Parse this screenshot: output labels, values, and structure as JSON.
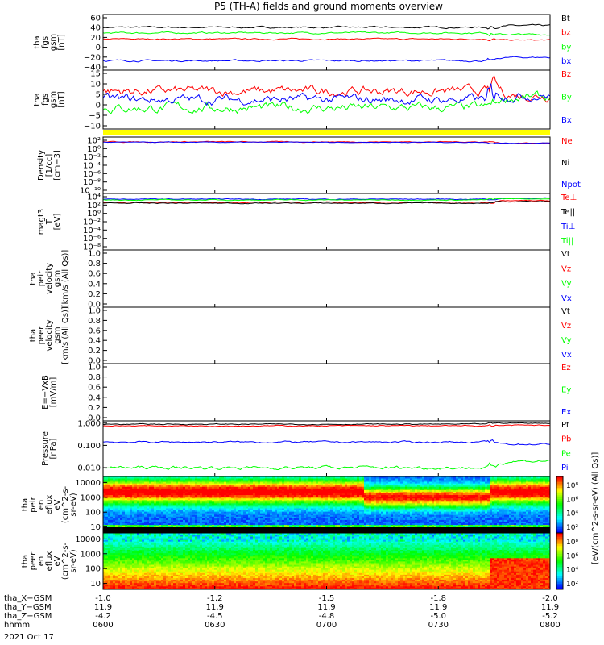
{
  "title": "P5 (TH-A) fields and ground moments overview",
  "date_label": "2021 Oct 17",
  "colors": {
    "black": "#000000",
    "red": "#ff0000",
    "green": "#00ff00",
    "blue": "#0000ff",
    "yellow": "#ffff00"
  },
  "chart_data": [
    {
      "id": "fgs_gsm",
      "type": "line",
      "ylabel_lines": [
        "tha",
        "fgs",
        "gsm",
        "[nT]"
      ],
      "ylim": [
        -40,
        60
      ],
      "yticks": [
        "60",
        "40",
        "20",
        "0",
        "−20",
        "−40"
      ],
      "legend": [
        {
          "text": "Bt",
          "color": "#000000"
        },
        {
          "text": "bz",
          "color": "#ff0000"
        },
        {
          "text": "by",
          "color": "#00ff00"
        },
        {
          "text": "bx",
          "color": "#0000ff"
        }
      ],
      "series": [
        {
          "name": "Bt",
          "color": "#000000",
          "base": 37,
          "noise": 2,
          "tail": 40
        },
        {
          "name": "bz",
          "color": "#ff0000",
          "base": 16,
          "noise": 1.5,
          "tail": 14
        },
        {
          "name": "by",
          "color": "#00ff00",
          "base": 27,
          "noise": 2,
          "tail": 24
        },
        {
          "name": "bx",
          "color": "#0000ff",
          "base": -23,
          "noise": 2,
          "tail": -17
        }
      ]
    },
    {
      "id": "fgs_gsm_dsl",
      "type": "line",
      "ylabel_lines": [
        "tha",
        "fgs",
        "gsm",
        "[nT]"
      ],
      "ylim": [
        -13,
        15
      ],
      "yticks": [
        "15",
        "10",
        "5",
        "0",
        "−5",
        "−10"
      ],
      "legend": [
        {
          "text": "Bz",
          "color": "#ff0000"
        },
        {
          "text": "By",
          "color": "#00ff00"
        },
        {
          "text": "Bx",
          "color": "#0000ff"
        }
      ],
      "series": [
        {
          "name": "Bz",
          "color": "#ff0000",
          "base": 5,
          "noise": 3,
          "tail": 3
        },
        {
          "name": "By",
          "color": "#00ff00",
          "base": -3,
          "noise": 3,
          "tail": 2
        },
        {
          "name": "Bx",
          "color": "#0000ff",
          "base": 1,
          "noise": 3,
          "tail": 3
        }
      ]
    },
    {
      "id": "density",
      "type": "line",
      "ylabel_lines": [
        "Density",
        "[1/cc]",
        "[cm−3]"
      ],
      "ylim": [
        -11,
        2
      ],
      "yticks": [
        "10²",
        "10⁰",
        "10⁻²",
        "10⁻⁴",
        "10⁻⁶",
        "10⁻⁸",
        "10⁻¹⁰"
      ],
      "legend": [
        {
          "text": "Ne",
          "color": "#ff0000"
        },
        {
          "text": "Ni",
          "color": "#000000"
        },
        {
          "text": "Npot",
          "color": "#0000ff"
        }
      ],
      "series": [
        {
          "name": "Ne",
          "color": "#ff0000",
          "base": 0.9,
          "noise": 0.15,
          "tail": 0.6
        },
        {
          "name": "Npot",
          "color": "#0000ff",
          "base": 0.8,
          "noise": 0.1,
          "tail": 0.6
        }
      ]
    },
    {
      "id": "temperature",
      "type": "line",
      "ylabel_lines": [
        "magt3",
        "T",
        "[eV]"
      ],
      "ylim": [
        -9,
        5
      ],
      "yticks": [
        "10⁴",
        "10²",
        "10⁰",
        "10⁻²",
        "10⁻⁴",
        "10⁻⁶",
        "10⁻⁸"
      ],
      "legend": [
        {
          "text": "Te⊥",
          "color": "#ff0000"
        },
        {
          "text": "Te||",
          "color": "#000000"
        },
        {
          "text": "Ti⊥",
          "color": "#0000ff"
        },
        {
          "text": "Ti||",
          "color": "#00ff00"
        }
      ],
      "series": [
        {
          "name": "Ti⊥",
          "color": "#0000ff",
          "base": 3.6,
          "noise": 0.15,
          "tail": 3.8
        },
        {
          "name": "Ti||",
          "color": "#00ff00",
          "base": 3.4,
          "noise": 0.15,
          "tail": 3.7
        },
        {
          "name": "Te⊥",
          "color": "#ff0000",
          "base": 2.8,
          "noise": 0.15,
          "tail": 3.2
        },
        {
          "name": "Te||",
          "color": "#000000",
          "base": 2.6,
          "noise": 0.15,
          "tail": 3.0
        }
      ]
    },
    {
      "id": "peir_velocity",
      "type": "line",
      "ylabel_lines": [
        "tha",
        "peir",
        "velocity",
        "gsm",
        "[km/s (All Qs)]"
      ],
      "ylim": [
        0,
        1
      ],
      "yticks": [
        "1.0",
        "0.8",
        "0.6",
        "0.4",
        "0.2",
        "0.0"
      ],
      "legend": [
        {
          "text": "Vt",
          "color": "#000000"
        },
        {
          "text": "Vz",
          "color": "#ff0000"
        },
        {
          "text": "Vy",
          "color": "#00ff00"
        },
        {
          "text": "Vx",
          "color": "#0000ff"
        }
      ],
      "series": []
    },
    {
      "id": "peer_velocity",
      "type": "line",
      "ylabel_lines": [
        "tha",
        "peer",
        "velocity",
        "gsm",
        "[km/s (All Qs)]"
      ],
      "ylim": [
        0,
        1
      ],
      "yticks": [
        "1.0",
        "0.8",
        "0.6",
        "0.4",
        "0.2",
        "0.0"
      ],
      "legend": [
        {
          "text": "Vt",
          "color": "#000000"
        },
        {
          "text": "Vz",
          "color": "#ff0000"
        },
        {
          "text": "Vy",
          "color": "#00ff00"
        },
        {
          "text": "Vx",
          "color": "#0000ff"
        }
      ],
      "series": []
    },
    {
      "id": "efield",
      "type": "line",
      "ylabel_lines": [
        "E=−VxB",
        "[mV/m]"
      ],
      "ylim": [
        0,
        1
      ],
      "yticks": [
        "1.0",
        "0.8",
        "0.6",
        "0.4",
        "0.2",
        "0.0"
      ],
      "legend": [
        {
          "text": "Ez",
          "color": "#ff0000"
        },
        {
          "text": "Ey",
          "color": "#00ff00"
        },
        {
          "text": "Ex",
          "color": "#0000ff"
        }
      ],
      "series": []
    },
    {
      "id": "pressure",
      "type": "line",
      "ylabel_lines": [
        "Pressure",
        "[nPa]"
      ],
      "ylim": [
        -2.4,
        0.1
      ],
      "yticks": [
        "1.000",
        "0.100",
        "0.010"
      ],
      "ytick_values": [
        0,
        -1,
        -2
      ],
      "legend": [
        {
          "text": "Pt",
          "color": "#000000"
        },
        {
          "text": "Pb",
          "color": "#ff0000"
        },
        {
          "text": "Pe",
          "color": "#00ff00"
        },
        {
          "text": "Pi",
          "color": "#0000ff"
        }
      ],
      "series": [
        {
          "name": "Pt",
          "color": "#000000",
          "base": -0.05,
          "noise": 0.03,
          "tail": 0
        },
        {
          "name": "Pb",
          "color": "#ff0000",
          "base": -0.12,
          "noise": 0.03,
          "tail": -0.1
        },
        {
          "name": "Pi",
          "color": "#0000ff",
          "base": -0.85,
          "noise": 0.05,
          "tail": -0.95
        },
        {
          "name": "Pe",
          "color": "#00ff00",
          "base": -2.0,
          "noise": 0.1,
          "tail": -1.7
        }
      ]
    },
    {
      "id": "peir_eflux",
      "type": "heatmap",
      "ylabel_lines": [
        "tha",
        "peir",
        "en",
        "eflux",
        "eV",
        "(cm^2-s-",
        "sr-eV)"
      ],
      "yticks": [
        "10000",
        "1000",
        "100",
        "10"
      ],
      "ytick_values": [
        4,
        3,
        2,
        1
      ],
      "ylim": [
        0.6,
        4.4
      ],
      "colorbar_ticks": [
        "10⁸",
        "10⁶",
        "10⁴",
        "10²"
      ],
      "colorbar_label": "[eV/(cm^2-s-sr-eV) (All Qs)]"
    },
    {
      "id": "peer_eflux",
      "type": "heatmap",
      "ylabel_lines": [
        "tha",
        "peer",
        "en",
        "eflux",
        "eV",
        "(cm^2-s-",
        "sr-eV)"
      ],
      "yticks": [
        "10000",
        "1000",
        "100",
        "10"
      ],
      "ytick_values": [
        4,
        3,
        2,
        1
      ],
      "ylim": [
        0.6,
        4.4
      ],
      "colorbar_ticks": [
        "10⁸",
        "10⁶",
        "10⁴",
        "10²"
      ],
      "colorbar_label": "[eV/(cm^2-s-sr-eV) (All Qs)]"
    }
  ],
  "x_axis": {
    "row_labels": [
      "tha_X−GSM",
      "tha_Y−GSM",
      "tha_Z−GSM",
      "hhmm"
    ],
    "ticks": [
      {
        "x": "-1.0",
        "y": "11.9",
        "z": "-4.2",
        "hhmm": "0600"
      },
      {
        "x": "-1.2",
        "y": "11.9",
        "z": "-4.5",
        "hhmm": "0630"
      },
      {
        "x": "-1.5",
        "y": "11.9",
        "z": "-4.8",
        "hhmm": "0700"
      },
      {
        "x": "-1.8",
        "y": "11.9",
        "z": "-5.0",
        "hhmm": "0730"
      },
      {
        "x": "-2.0",
        "y": "11.9",
        "z": "-5.2",
        "hhmm": "0800"
      }
    ]
  }
}
